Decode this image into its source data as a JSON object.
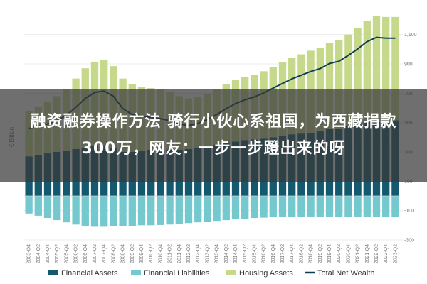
{
  "overlay": {
    "line1": "融资融券操作方法 骑行小伙心系祖国，为西藏捐款",
    "line2": "300万，网友：一步一步蹬出来的呀"
  },
  "chart_data": {
    "type": "bar",
    "ylabel": "€ Billion",
    "ylim": [
      -300,
      1200
    ],
    "yticks": [
      -300,
      -100,
      100,
      300,
      500,
      700,
      900,
      1100
    ],
    "ytick_labels": [
      "-300",
      "-100",
      "100",
      "300",
      "500",
      "700",
      "900",
      "1,100"
    ],
    "grid": true,
    "legend_position": "bottom",
    "colors": {
      "financial_assets": "#14596e",
      "financial_liabilities": "#74c9cf",
      "housing_assets": "#c6d98a",
      "total_net_wealth": "#0d3d55"
    },
    "categories": [
      "2003-Q4",
      "2004-Q2",
      "2004-Q4",
      "2005-Q2",
      "2005-Q4",
      "2006-Q2",
      "2006-Q4",
      "2007-Q2",
      "2007-Q4",
      "2008-Q2",
      "2008-Q4",
      "2009-Q2",
      "2009-Q4",
      "2010-Q2",
      "2010-Q4",
      "2011-Q2",
      "2011-Q4",
      "2012-Q2",
      "2012-Q4",
      "2013-Q2",
      "2013-Q4",
      "2014-Q2",
      "2014-Q4",
      "2015-Q2",
      "2015-Q4",
      "2016-Q2",
      "2016-Q4",
      "2017-Q2",
      "2017-Q4",
      "2018-Q2",
      "2018-Q4",
      "2019-Q2",
      "2019-Q4",
      "2020-Q2",
      "2020-Q4",
      "2021-Q2",
      "2021-Q4",
      "2022-Q2",
      "2022-Q4",
      "2023-Q2"
    ],
    "series": [
      {
        "name": "Financial Assets",
        "kind": "bar",
        "values": [
          270,
          280,
          290,
          300,
          310,
          320,
          330,
          340,
          345,
          325,
          300,
          300,
          310,
          315,
          320,
          318,
          315,
          320,
          330,
          340,
          350,
          360,
          370,
          380,
          385,
          390,
          400,
          410,
          420,
          425,
          430,
          440,
          455,
          460,
          480,
          495,
          505,
          505,
          500,
          515
        ]
      },
      {
        "name": "Financial Liabilities",
        "kind": "bar",
        "values": [
          -120,
          -135,
          -150,
          -165,
          -180,
          -195,
          -205,
          -210,
          -210,
          -205,
          -205,
          -205,
          -200,
          -200,
          -198,
          -195,
          -190,
          -185,
          -180,
          -175,
          -170,
          -165,
          -160,
          -155,
          -150,
          -148,
          -145,
          -143,
          -142,
          -142,
          -142,
          -142,
          -142,
          -142,
          -142,
          -143,
          -143,
          -144,
          -145,
          -145
        ]
      },
      {
        "name": "Housing Assets",
        "kind": "bar",
        "values": [
          310,
          330,
          350,
          380,
          420,
          480,
          540,
          575,
          580,
          560,
          500,
          460,
          435,
          420,
          405,
          390,
          365,
          345,
          345,
          355,
          375,
          400,
          420,
          430,
          440,
          460,
          480,
          500,
          520,
          540,
          560,
          570,
          590,
          600,
          620,
          650,
          690,
          720,
          720,
          705
        ]
      },
      {
        "name": "Total Net Wealth",
        "kind": "line",
        "values": [
          460,
          475,
          490,
          515,
          550,
          605,
          665,
          705,
          715,
          680,
          595,
          555,
          545,
          535,
          527,
          513,
          490,
          480,
          495,
          520,
          555,
          595,
          630,
          655,
          675,
          702,
          735,
          767,
          798,
          823,
          848,
          868,
          903,
          918,
          958,
          1002,
          1052,
          1081,
          1075,
          1075
        ]
      }
    ]
  },
  "legend": [
    {
      "label": "Financial Assets",
      "color": "#14596e",
      "shape": "rect"
    },
    {
      "label": "Financial Liabilities",
      "color": "#74c9cf",
      "shape": "rect"
    },
    {
      "label": "Housing Assets",
      "color": "#c6d98a",
      "shape": "rect"
    },
    {
      "label": "Total Net Wealth",
      "color": "#0d3d55",
      "shape": "line"
    }
  ]
}
